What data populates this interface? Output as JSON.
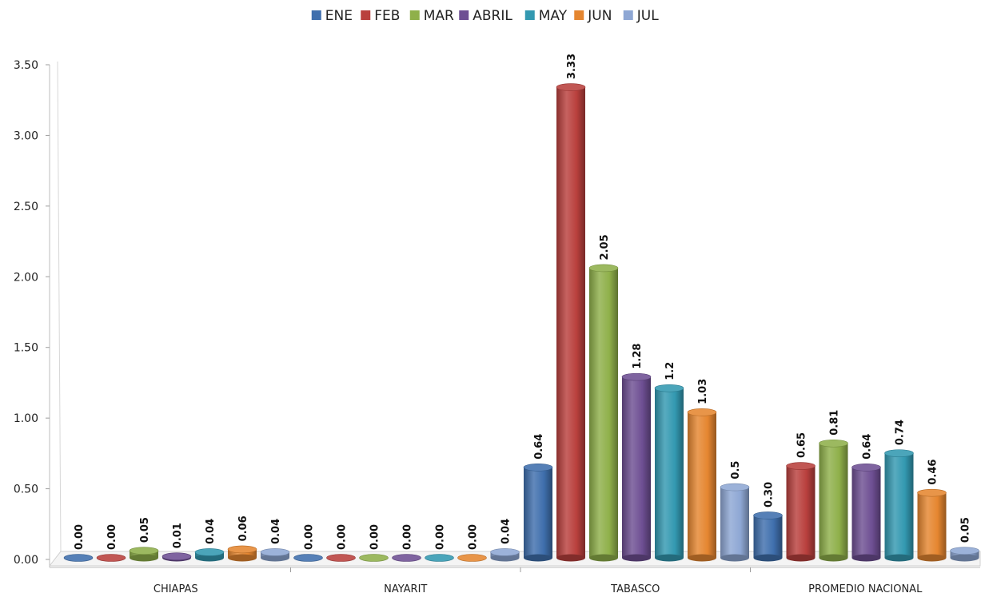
{
  "chart_data": {
    "type": "bar",
    "title": "",
    "xlabel": "",
    "ylabel": "",
    "ylim": [
      0,
      3.5
    ],
    "yticks": [
      "0.00",
      "0.50",
      "1.00",
      "1.50",
      "2.00",
      "2.50",
      "3.00",
      "3.50"
    ],
    "ytick_values": [
      0,
      0.5,
      1.0,
      1.5,
      2.0,
      2.5,
      3.0,
      3.5
    ],
    "legend_position": "top",
    "grid": false,
    "categories": [
      "CHIAPAS",
      "NAYARIT",
      "TABASCO",
      "PROMEDIO NACIONAL"
    ],
    "series": [
      {
        "name": "ENE",
        "color": "#3f6fad",
        "values": [
          0.0,
          0.0,
          0.64,
          0.3
        ],
        "labels": [
          "0.00",
          "0.00",
          "0.64",
          "0.30"
        ]
      },
      {
        "name": "FEB",
        "color": "#b9403d",
        "values": [
          0.0,
          0.0,
          3.33,
          0.65
        ],
        "labels": [
          "0.00",
          "0.00",
          "3.33",
          "0.65"
        ]
      },
      {
        "name": "MAR",
        "color": "#8fb04a",
        "values": [
          0.05,
          0.0,
          2.05,
          0.81
        ],
        "labels": [
          "0.05",
          "0.00",
          "2.05",
          "0.81"
        ]
      },
      {
        "name": "ABRIL",
        "color": "#6e4f93",
        "values": [
          0.01,
          0.0,
          1.28,
          0.64
        ],
        "labels": [
          "0.01",
          "0.00",
          "1.28",
          "0.64"
        ]
      },
      {
        "name": "MAY",
        "color": "#3399b1",
        "values": [
          0.04,
          0.0,
          1.2,
          0.74
        ],
        "labels": [
          "0.04",
          "0.00",
          "1.2",
          "0.74"
        ]
      },
      {
        "name": "JUN",
        "color": "#e58630",
        "values": [
          0.06,
          0.0,
          1.03,
          0.46
        ],
        "labels": [
          "0.06",
          "0.00",
          "1.03",
          "0.46"
        ]
      },
      {
        "name": "JUL",
        "color": "#8ea7d4",
        "values": [
          0.04,
          0.04,
          0.5,
          0.05
        ],
        "labels": [
          "0.04",
          "0.04",
          "0.5",
          "0.05"
        ]
      }
    ]
  }
}
